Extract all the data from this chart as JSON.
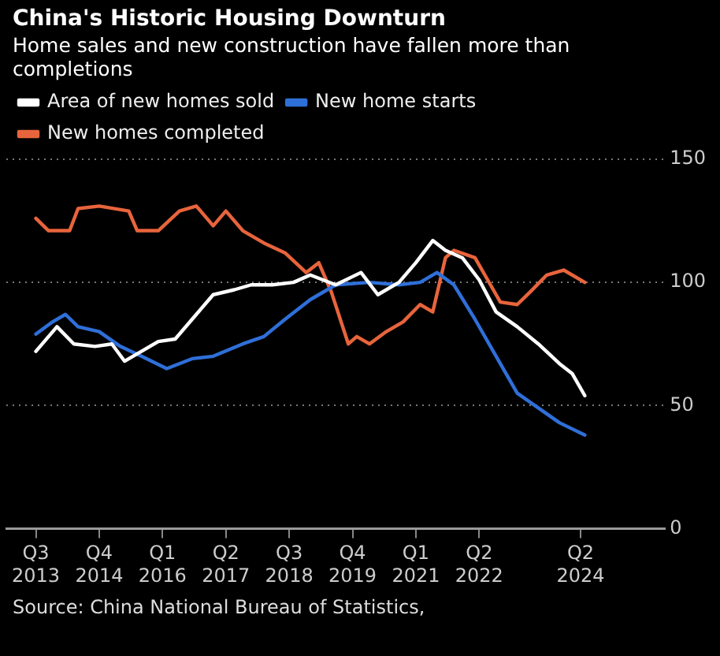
{
  "chart_data": {
    "type": "line",
    "title": "China's Historic Housing Downturn",
    "subtitle": "Home sales and new construction have fallen more than completions",
    "annotations": [
      "Source: China National Bureau of Statistics,"
    ],
    "legend": "top left",
    "grid": "y",
    "marker": "none",
    "line_style": "solid",
    "ylim": [
      0,
      150
    ],
    "yticks": [
      0,
      50,
      100,
      150
    ],
    "xlim": [
      "2012-12",
      "2025-12"
    ],
    "xticks": [
      {
        "value": "2013-07",
        "label": "Q3 2013"
      },
      {
        "value": "2014-10",
        "label": "Q4 2014"
      },
      {
        "value": "2016-01",
        "label": "Q1 2016"
      },
      {
        "value": "2017-04",
        "label": "Q2 2017"
      },
      {
        "value": "2018-07",
        "label": "Q3 2018"
      },
      {
        "value": "2019-10",
        "label": "Q4 2019"
      },
      {
        "value": "2021-01",
        "label": "Q1 2021"
      },
      {
        "value": "2022-04",
        "label": "Q2 2022"
      },
      {
        "value": "2024-04",
        "label": "Q2 2024"
      }
    ],
    "series": [
      {
        "name": "Area of new homes sold",
        "color": "#ffffff",
        "x": [
          "2013-07",
          "2013-12",
          "2014-04",
          "2014-09",
          "2015-01",
          "2015-04",
          "2015-08",
          "2015-12",
          "2016-04",
          "2016-08",
          "2017-01",
          "2017-06",
          "2017-10",
          "2018-03",
          "2018-08",
          "2018-12",
          "2019-06",
          "2019-12",
          "2020-04",
          "2020-09",
          "2021-01",
          "2021-05",
          "2021-08",
          "2021-12",
          "2022-04",
          "2022-08",
          "2023-01",
          "2023-06",
          "2023-11",
          "2024-02",
          "2024-05"
        ],
        "values": [
          72,
          82,
          75,
          74,
          75,
          68,
          72,
          76,
          77,
          85,
          95,
          97,
          99,
          99,
          100,
          103,
          99,
          104,
          95,
          100,
          108,
          117,
          113,
          110,
          101,
          88,
          82,
          75,
          67,
          63,
          54
        ]
      },
      {
        "name": "New home starts",
        "color": "#2f6fd8",
        "x": [
          "2013-07",
          "2013-11",
          "2014-02",
          "2014-05",
          "2014-10",
          "2015-03",
          "2015-08",
          "2016-02",
          "2016-08",
          "2017-01",
          "2017-08",
          "2018-01",
          "2018-06",
          "2018-12",
          "2019-06",
          "2020-02",
          "2020-09",
          "2021-02",
          "2021-06",
          "2021-10",
          "2022-03",
          "2022-08",
          "2023-01",
          "2023-06",
          "2023-11",
          "2024-05"
        ],
        "values": [
          79,
          84,
          87,
          82,
          80,
          74,
          70,
          65,
          69,
          70,
          75,
          78,
          85,
          93,
          99,
          100,
          99,
          100,
          104,
          99,
          85,
          70,
          55,
          49,
          43,
          38
        ]
      },
      {
        "name": "New homes completed",
        "color": "#e8643c",
        "x": [
          "2013-07",
          "2013-10",
          "2014-03",
          "2014-05",
          "2014-10",
          "2015-05",
          "2015-07",
          "2015-12",
          "2016-05",
          "2016-09",
          "2017-01",
          "2017-04",
          "2017-08",
          "2018-01",
          "2018-06",
          "2018-11",
          "2019-02",
          "2019-05",
          "2019-09",
          "2019-11",
          "2020-02",
          "2020-06",
          "2020-10",
          "2021-02",
          "2021-05",
          "2021-08",
          "2021-10",
          "2022-03",
          "2022-06",
          "2022-09",
          "2023-01",
          "2023-04",
          "2023-08",
          "2023-12",
          "2024-05"
        ],
        "values": [
          126,
          121,
          121,
          130,
          131,
          129,
          121,
          121,
          129,
          131,
          123,
          129,
          121,
          116,
          112,
          104,
          108,
          96,
          75,
          78,
          75,
          80,
          84,
          91,
          88,
          110,
          113,
          110,
          101,
          92,
          91,
          96,
          103,
          105,
          100
        ]
      }
    ]
  }
}
